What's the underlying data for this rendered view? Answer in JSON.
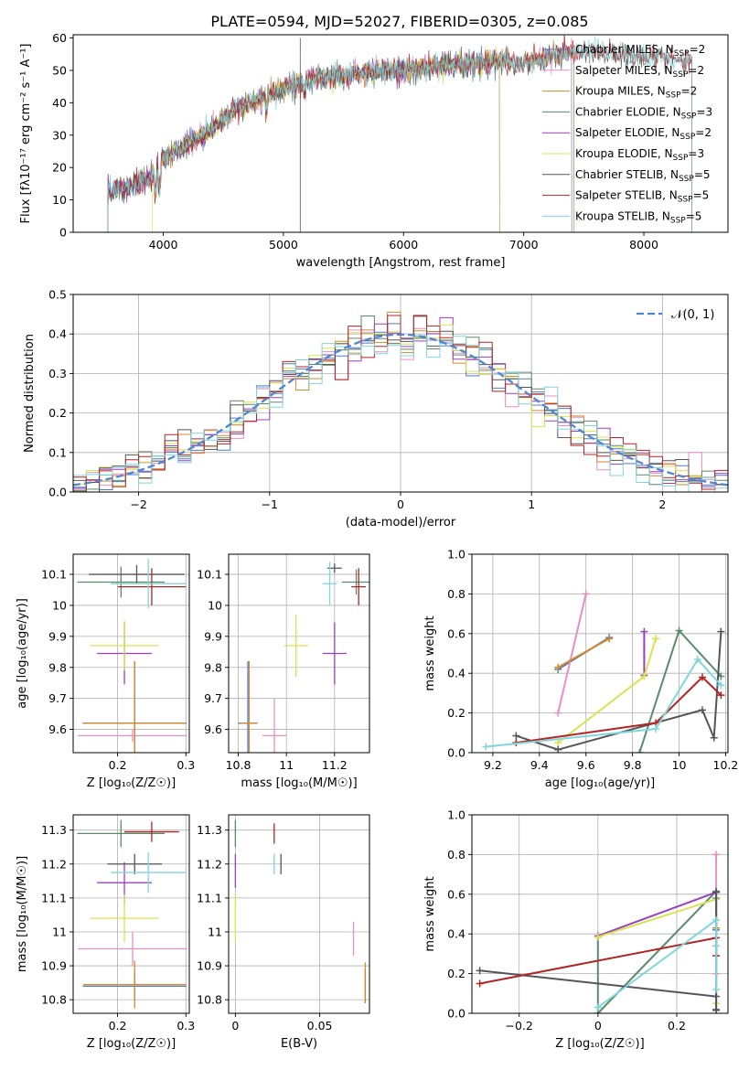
{
  "chart_data": [
    {
      "type": "line",
      "title": "PLATE=0594, MJD=52027, FIBERID=0305, z=0.085",
      "xlabel": "wavelength [Angstrom, rest frame]",
      "ylabel": "Flux [fλ10⁻¹⁷ erg cm⁻² s⁻¹ A⁻¹]",
      "xlim": [
        3250,
        8700
      ],
      "ylim": [
        0,
        61
      ],
      "xticks": [
        4000,
        5000,
        6000,
        7000,
        8000
      ],
      "yticks": [
        0,
        10,
        20,
        30,
        40,
        50,
        60
      ],
      "grid": false,
      "legend_position": "upper-right",
      "series": [
        {
          "name": "Chabrier MILES, N",
          "sub": "SSP",
          "tail": "=2",
          "color": "#4e7ac7",
          "x_range": [
            3540,
            7400
          ]
        },
        {
          "name": "Salpeter MILES, N",
          "sub": "SSP",
          "tail": "=2",
          "color": "#e88fc4",
          "x_range": [
            3540,
            7420
          ]
        },
        {
          "name": "Kroupa MILES, N",
          "sub": "SSP",
          "tail": "=2",
          "color": "#d08a2a",
          "x_range": [
            3540,
            7420
          ]
        },
        {
          "name": "Chabrier ELODIE, N",
          "sub": "SSP",
          "tail": "=3",
          "color": "#5a8a6a",
          "x_range": [
            3540,
            6800
          ]
        },
        {
          "name": "Salpeter ELODIE, N",
          "sub": "SSP",
          "tail": "=2",
          "color": "#9b3fc0",
          "x_range": [
            3540,
            6800
          ]
        },
        {
          "name": "Kroupa ELODIE, N",
          "sub": "SSP",
          "tail": "=3",
          "color": "#d7e34f",
          "x_range": [
            3910,
            6800
          ]
        },
        {
          "name": "Chabrier STELIB, N",
          "sub": "SSP",
          "tail": "=5",
          "color": "#555555",
          "x_range": [
            3540,
            8400
          ]
        },
        {
          "name": "Salpeter STELIB, N",
          "sub": "SSP",
          "tail": "=5",
          "color": "#b32424",
          "x_range": [
            3540,
            8400
          ]
        },
        {
          "name": "Kroupa STELIB, N",
          "sub": "SSP",
          "tail": "=5",
          "color": "#7fd6dc",
          "x_range": [
            3540,
            8400
          ]
        }
      ],
      "spectrum_shape": {
        "x": [
          3540,
          3700,
          3900,
          4000,
          4200,
          4400,
          4600,
          4800,
          5000,
          5200,
          5400,
          5600,
          5800,
          6000,
          6200,
          6400,
          6600,
          6800,
          7000,
          7200,
          7400,
          7600,
          7800,
          8000,
          8200,
          8400
        ],
        "y": [
          13,
          14,
          17,
          23,
          27,
          32,
          38,
          41,
          44,
          47,
          48,
          49,
          50,
          50,
          51,
          52,
          52,
          53,
          52,
          54,
          56,
          56,
          55,
          54,
          54,
          53
        ]
      },
      "spike": {
        "x": 5140,
        "y": 60
      }
    },
    {
      "type": "line",
      "subtype": "step-histogram",
      "xlabel": "(data-model)/error",
      "ylabel": "Normed distribution",
      "xlim": [
        -2.5,
        2.5
      ],
      "ylim": [
        0,
        0.5
      ],
      "xticks": [
        -2,
        -1,
        0,
        1,
        2
      ],
      "yticks": [
        0.0,
        0.1,
        0.2,
        0.3,
        0.4,
        0.5
      ],
      "grid": true,
      "bin_width": 0.1,
      "legend_position": "upper-right",
      "reference": {
        "name": "𝒩(0, 1)",
        "color": "#4e86d6",
        "style": "dashed",
        "mean": 0,
        "sigma": 1
      }
    },
    {
      "type": "scatter",
      "subtype": "errorbar",
      "xlabel": "Z [log₁₀(Z/Z☉)]",
      "ylabel": "age  [log₁₀(age/yr)]",
      "xlim": [
        0.135,
        0.305
      ],
      "ylim": [
        9.525,
        10.165
      ],
      "xticks": [
        0.2,
        0.3
      ],
      "yticks": [
        9.6,
        9.7,
        9.8,
        9.9,
        10.0,
        10.1
      ],
      "grid": true,
      "points": [
        {
          "color": "#4e7ac7",
          "x": 0.225,
          "y": 9.62,
          "xerr": 0.076,
          "yerr": 0.2
        },
        {
          "color": "#e88fc4",
          "x": 0.222,
          "y": 9.58,
          "xerr": 0.08,
          "yerr": 0.02
        },
        {
          "color": "#d08a2a",
          "x": 0.225,
          "y": 9.62,
          "xerr": 0.075,
          "yerr": 0.2
        },
        {
          "color": "#5a8a6a",
          "x": 0.205,
          "y": 10.075,
          "xerr": 0.064,
          "yerr": 0.05
        },
        {
          "color": "#9b3fc0",
          "x": 0.21,
          "y": 9.845,
          "xerr": 0.04,
          "yerr": 0.1
        },
        {
          "color": "#d7e34f",
          "x": 0.21,
          "y": 9.87,
          "xerr": 0.05,
          "yerr": 0.08
        },
        {
          "color": "#555555",
          "x": 0.228,
          "y": 10.1,
          "xerr": 0.07,
          "yerr": 0.03
        },
        {
          "color": "#b32424",
          "x": 0.25,
          "y": 10.06,
          "xerr": 0.05,
          "yerr": 0.06
        },
        {
          "color": "#7fd6dc",
          "x": 0.245,
          "y": 10.07,
          "xerr": 0.055,
          "yerr": 0.08
        }
      ]
    },
    {
      "type": "scatter",
      "subtype": "errorbar",
      "xlabel": "mass [log₁₀(M/M☉)]",
      "ylabel": "",
      "xlim": [
        10.76,
        11.345
      ],
      "ylim": [
        9.525,
        10.165
      ],
      "xticks": [
        10.8,
        11.0,
        11.2
      ],
      "yticks": [
        9.6,
        9.7,
        9.8,
        9.9,
        10.0,
        10.1
      ],
      "grid": true,
      "points": [
        {
          "color": "#4e7ac7",
          "x": 10.84,
          "y": 9.62,
          "xerr": 0.04,
          "yerr": 0.2
        },
        {
          "color": "#e88fc4",
          "x": 10.95,
          "y": 9.58,
          "xerr": 0.05,
          "yerr": 0.12
        },
        {
          "color": "#d08a2a",
          "x": 10.845,
          "y": 9.62,
          "xerr": 0.035,
          "yerr": 0.2
        },
        {
          "color": "#5a8a6a",
          "x": 11.29,
          "y": 10.075,
          "xerr": 0.06,
          "yerr": 0.04
        },
        {
          "color": "#9b3fc0",
          "x": 11.2,
          "y": 9.845,
          "xerr": 0.05,
          "yerr": 0.1
        },
        {
          "color": "#d7e34f",
          "x": 11.04,
          "y": 9.87,
          "xerr": 0.05,
          "yerr": 0.1
        },
        {
          "color": "#555555",
          "x": 11.2,
          "y": 10.12,
          "xerr": 0.03,
          "yerr": 0.015
        },
        {
          "color": "#b32424",
          "x": 11.3,
          "y": 10.06,
          "xerr": 0.03,
          "yerr": 0.06
        },
        {
          "color": "#7fd6dc",
          "x": 11.18,
          "y": 10.07,
          "xerr": 0.03,
          "yerr": 0.07
        }
      ]
    },
    {
      "type": "line",
      "xlabel": "age  [log₁₀(age/yr)]",
      "ylabel": "mass weight",
      "xlim": [
        9.11,
        10.21
      ],
      "ylim": [
        0,
        1.0
      ],
      "xticks": [
        9.2,
        9.4,
        9.6,
        9.8,
        10.0,
        10.2
      ],
      "yticks": [
        0.0,
        0.2,
        0.4,
        0.6,
        0.8,
        1.0
      ],
      "grid": true,
      "series": [
        {
          "color": "#4e7ac7",
          "x": [
            9.48,
            9.7
          ],
          "y": [
            0.42,
            0.58
          ]
        },
        {
          "color": "#e88fc4",
          "x": [
            9.48,
            9.6
          ],
          "y": [
            0.2,
            0.8
          ]
        },
        {
          "color": "#d08a2a",
          "x": [
            9.48,
            9.7
          ],
          "y": [
            0.43,
            0.575
          ]
        },
        {
          "color": "#5a8a6a",
          "x": [
            9.83,
            10.0,
            10.18
          ],
          "y": [
            0.0,
            0.615,
            0.385
          ]
        },
        {
          "color": "#9b3fc0",
          "x": [
            9.85,
            9.85
          ],
          "y": [
            0.39,
            0.61
          ]
        },
        {
          "color": "#d7e34f",
          "x": [
            9.48,
            9.85,
            9.9
          ],
          "y": [
            0.05,
            0.385,
            0.575
          ]
        },
        {
          "color": "#555555",
          "x": [
            9.3,
            9.48,
            10.1,
            10.15,
            10.18
          ],
          "y": [
            0.085,
            0.015,
            0.215,
            0.075,
            0.61
          ]
        },
        {
          "color": "#b32424",
          "x": [
            9.3,
            9.9,
            10.1,
            10.18
          ],
          "y": [
            0.05,
            0.15,
            0.38,
            0.29
          ]
        },
        {
          "color": "#7fd6dc",
          "x": [
            9.17,
            9.9,
            10.08,
            10.18
          ],
          "y": [
            0.03,
            0.12,
            0.47,
            0.34
          ]
        }
      ]
    },
    {
      "type": "scatter",
      "subtype": "errorbar",
      "xlabel": "Z [log₁₀(Z/Z☉)]",
      "ylabel": "mass [log₁₀(M/M☉)]",
      "xlim": [
        0.135,
        0.305
      ],
      "ylim": [
        10.76,
        11.345
      ],
      "xticks": [
        0.2,
        0.3
      ],
      "yticks": [
        10.8,
        10.9,
        11.0,
        11.1,
        11.2,
        11.3
      ],
      "grid": true,
      "points": [
        {
          "color": "#4e7ac7",
          "x": 0.225,
          "y": 10.84,
          "xerr": 0.076,
          "yerr": 0.04
        },
        {
          "color": "#e88fc4",
          "x": 0.222,
          "y": 10.95,
          "xerr": 0.08,
          "yerr": 0.05
        },
        {
          "color": "#d08a2a",
          "x": 0.225,
          "y": 10.845,
          "xerr": 0.075,
          "yerr": 0.07
        },
        {
          "color": "#5a8a6a",
          "x": 0.205,
          "y": 11.29,
          "xerr": 0.064,
          "yerr": 0.04
        },
        {
          "color": "#9b3fc0",
          "x": 0.21,
          "y": 11.145,
          "xerr": 0.04,
          "yerr": 0.06
        },
        {
          "color": "#d7e34f",
          "x": 0.21,
          "y": 11.04,
          "xerr": 0.05,
          "yerr": 0.07
        },
        {
          "color": "#555555",
          "x": 0.225,
          "y": 11.2,
          "xerr": 0.04,
          "yerr": 0.03
        },
        {
          "color": "#b32424",
          "x": 0.25,
          "y": 11.295,
          "xerr": 0.04,
          "yerr": 0.03
        },
        {
          "color": "#7fd6dc",
          "x": 0.245,
          "y": 11.175,
          "xerr": 0.055,
          "yerr": 0.06
        }
      ]
    },
    {
      "type": "scatter",
      "subtype": "errorbar",
      "xlabel": "E(B-V)",
      "ylabel": "",
      "xlim": [
        -0.004,
        0.0795
      ],
      "ylim": [
        10.76,
        11.345
      ],
      "xticks": [
        0.0,
        0.05
      ],
      "yticks": [
        10.8,
        10.9,
        11.0,
        11.1,
        11.2,
        11.3
      ],
      "grid": true,
      "points": [
        {
          "color": "#4e7ac7",
          "x": 0.077,
          "y": 10.84,
          "xerr": 0.0,
          "yerr": 0.05
        },
        {
          "color": "#e88fc4",
          "x": 0.07,
          "y": 10.98,
          "xerr": 0.0,
          "yerr": 0.05
        },
        {
          "color": "#d08a2a",
          "x": 0.077,
          "y": 10.85,
          "xerr": 0.0,
          "yerr": 0.06
        },
        {
          "color": "#5a8a6a",
          "x": 0.0,
          "y": 11.29,
          "xerr": 0.0,
          "yerr": 0.04
        },
        {
          "color": "#9b3fc0",
          "x": 0.0,
          "y": 11.18,
          "xerr": 0.0,
          "yerr": 0.05
        },
        {
          "color": "#d7e34f",
          "x": 0.0,
          "y": 11.04,
          "xerr": 0.0,
          "yerr": 0.07
        },
        {
          "color": "#555555",
          "x": 0.027,
          "y": 11.2,
          "xerr": 0.0,
          "yerr": 0.03
        },
        {
          "color": "#b32424",
          "x": 0.023,
          "y": 11.29,
          "xerr": 0.0,
          "yerr": 0.03
        },
        {
          "color": "#7fd6dc",
          "x": 0.023,
          "y": 11.2,
          "xerr": 0.0,
          "yerr": 0.03
        }
      ]
    },
    {
      "type": "line",
      "xlabel": "Z [log₁₀(Z/Z☉)]",
      "ylabel": "mass weight",
      "xlim": [
        -0.32,
        0.33
      ],
      "ylim": [
        0,
        1.0
      ],
      "xticks": [
        -0.2,
        0.0,
        0.2
      ],
      "yticks": [
        0.0,
        0.2,
        0.4,
        0.6,
        0.8,
        1.0
      ],
      "grid": true,
      "series": [
        {
          "color": "#4e7ac7",
          "x": [
            0.3,
            0.3
          ],
          "y": [
            0.42,
            0.58
          ]
        },
        {
          "color": "#e88fc4",
          "x": [
            0.3,
            0.3
          ],
          "y": [
            0.2,
            0.8
          ]
        },
        {
          "color": "#d08a2a",
          "x": [
            0.3,
            0.3
          ],
          "y": [
            0.43,
            0.575
          ]
        },
        {
          "color": "#5a8a6a",
          "x": [
            0.0,
            0.0,
            0.3,
            0.3
          ],
          "y": [
            0.385,
            0.0,
            0.615,
            0.02
          ]
        },
        {
          "color": "#9b3fc0",
          "x": [
            0.0,
            0.3
          ],
          "y": [
            0.39,
            0.61
          ]
        },
        {
          "color": "#d7e34f",
          "x": [
            0.0,
            0.3,
            0.3
          ],
          "y": [
            0.385,
            0.575,
            0.05
          ]
        },
        {
          "color": "#555555",
          "x": [
            -0.3,
            0.3,
            0.3,
            0.3
          ],
          "y": [
            0.215,
            0.085,
            0.015,
            0.61
          ]
        },
        {
          "color": "#b32424",
          "x": [
            -0.3,
            0.3,
            0.3
          ],
          "y": [
            0.15,
            0.38,
            0.29
          ]
        },
        {
          "color": "#7fd6dc",
          "x": [
            0.0,
            0.3,
            0.3,
            0.3
          ],
          "y": [
            0.03,
            0.47,
            0.34,
            0.12
          ]
        }
      ]
    }
  ]
}
